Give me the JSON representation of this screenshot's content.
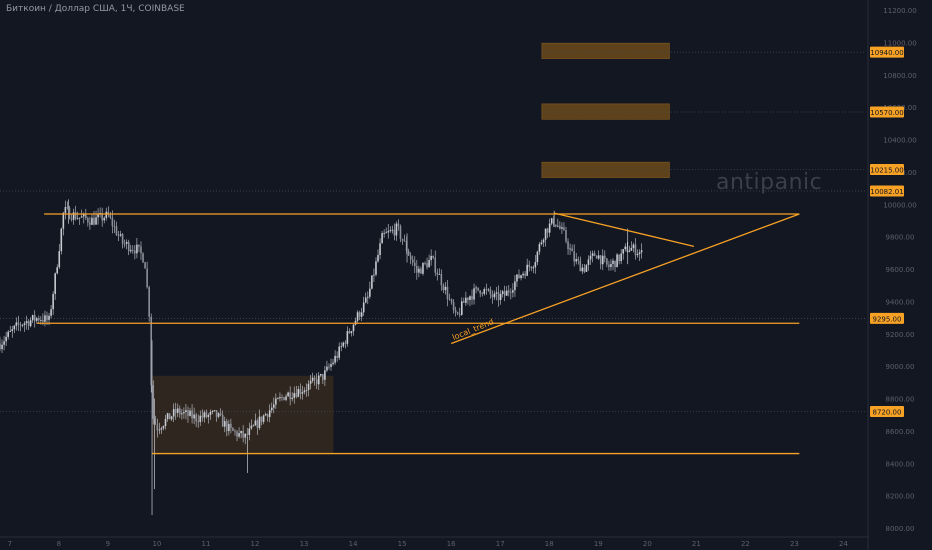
{
  "header": {
    "title": "Биткоин / Доллар США, 1Ч, COINBASE"
  },
  "watermark": "antipanic",
  "colors": {
    "bg": "#131722",
    "candle": "#c8cbd2",
    "orange": "#f7a125",
    "zone": "#6b4a1a",
    "consolidation": "#3a2c20",
    "axis_text": "#5d606b",
    "grid_dotted": "#4a4e59"
  },
  "chart_data": {
    "type": "candlestick",
    "title": "Биткоин / Доллар США, 1Ч, COINBASE",
    "ylim": [
      8000,
      11200
    ],
    "xlim": [
      6.8,
      24.5
    ],
    "y_ticks": [
      "11200.00",
      "11000.00",
      "10800.00",
      "10600.00",
      "10400.00",
      "10200.00",
      "10000.00",
      "9800.00",
      "9600.00",
      "9400.00",
      "9200.00",
      "9000.00",
      "8800.00",
      "8600.00",
      "8400.00",
      "8200.00",
      "8000.00"
    ],
    "x_ticks": [
      {
        "x": 7,
        "label": "7"
      },
      {
        "x": 8,
        "label": "8"
      },
      {
        "x": 9,
        "label": "9"
      },
      {
        "x": 10,
        "label": "10"
      },
      {
        "x": 11,
        "label": "11"
      },
      {
        "x": 12,
        "label": "12"
      },
      {
        "x": 13,
        "label": "13"
      },
      {
        "x": 14,
        "label": "14"
      },
      {
        "x": 15,
        "label": "15"
      },
      {
        "x": 16,
        "label": "16"
      },
      {
        "x": 17,
        "label": "17"
      },
      {
        "x": 18,
        "label": "18"
      },
      {
        "x": 19,
        "label": "19"
      },
      {
        "x": 20,
        "label": "20"
      },
      {
        "x": 21,
        "label": "21"
      },
      {
        "x": 22,
        "label": "22"
      },
      {
        "x": 23,
        "label": "23"
      },
      {
        "x": 24,
        "label": "24"
      }
    ],
    "path": [
      [
        6.8,
        9140
      ],
      [
        7.2,
        9260
      ],
      [
        7.6,
        9300
      ],
      [
        7.8,
        9280
      ],
      [
        7.95,
        9600
      ],
      [
        8.1,
        9960
      ],
      [
        8.4,
        9920
      ],
      [
        8.7,
        9900
      ],
      [
        9.0,
        9930
      ],
      [
        9.3,
        9760
      ],
      [
        9.6,
        9720
      ],
      [
        9.75,
        9660
      ],
      [
        9.85,
        9300
      ],
      [
        9.9,
        8700
      ],
      [
        10.0,
        8620
      ],
      [
        10.4,
        8720
      ],
      [
        10.8,
        8680
      ],
      [
        11.2,
        8700
      ],
      [
        11.5,
        8600
      ],
      [
        11.8,
        8560
      ],
      [
        12.2,
        8700
      ],
      [
        12.6,
        8820
      ],
      [
        13.0,
        8860
      ],
      [
        13.4,
        8940
      ],
      [
        13.7,
        9080
      ],
      [
        14.0,
        9260
      ],
      [
        14.3,
        9420
      ],
      [
        14.6,
        9800
      ],
      [
        14.9,
        9850
      ],
      [
        15.1,
        9720
      ],
      [
        15.3,
        9580
      ],
      [
        15.6,
        9660
      ],
      [
        15.9,
        9460
      ],
      [
        16.1,
        9290
      ],
      [
        16.3,
        9420
      ],
      [
        16.6,
        9480
      ],
      [
        16.9,
        9420
      ],
      [
        17.1,
        9440
      ],
      [
        17.4,
        9560
      ],
      [
        17.7,
        9650
      ],
      [
        17.9,
        9830
      ],
      [
        18.1,
        9900
      ],
      [
        18.3,
        9810
      ],
      [
        18.5,
        9660
      ],
      [
        18.7,
        9600
      ],
      [
        18.95,
        9700
      ],
      [
        19.2,
        9610
      ],
      [
        19.4,
        9660
      ],
      [
        19.6,
        9730
      ],
      [
        19.75,
        9720
      ],
      [
        19.9,
        9690
      ]
    ],
    "levels": [
      {
        "label": "10940.00",
        "value": 10940
      },
      {
        "label": "10570.00",
        "value": 10570
      },
      {
        "label": "10215.00",
        "value": 10215
      },
      {
        "label": "10082.01",
        "value": 10082.01
      },
      {
        "label": "9295.00",
        "value": 9295
      },
      {
        "label": "8720.00",
        "value": 8720
      }
    ],
    "horizontal_lines": [
      {
        "from_x": 7.7,
        "to_x": 23.1,
        "y": 9940
      },
      {
        "from_x": 7.55,
        "to_x": 23.1,
        "y": 9265
      },
      {
        "from_x": 9.9,
        "to_x": 23.1,
        "y": 8460
      }
    ],
    "trend_lines": [
      {
        "x1": 16.0,
        "y1": 9140,
        "x2": 23.1,
        "y2": 9940
      },
      {
        "x1": 18.1,
        "y1": 9945,
        "x2": 20.95,
        "y2": 9740
      }
    ],
    "zones": [
      {
        "x1": 17.85,
        "x2": 20.45,
        "y1": 10900,
        "y2": 10995
      },
      {
        "x1": 17.85,
        "x2": 20.45,
        "y1": 10525,
        "y2": 10620
      },
      {
        "x1": 17.85,
        "x2": 20.45,
        "y1": 10165,
        "y2": 10260
      }
    ],
    "consolidation_box": {
      "x1": 9.9,
      "x2": 13.6,
      "y1": 8460,
      "y2": 8940
    },
    "annotations": [
      {
        "text": "local_trend",
        "x": 16.05,
        "y": 9160
      }
    ]
  }
}
